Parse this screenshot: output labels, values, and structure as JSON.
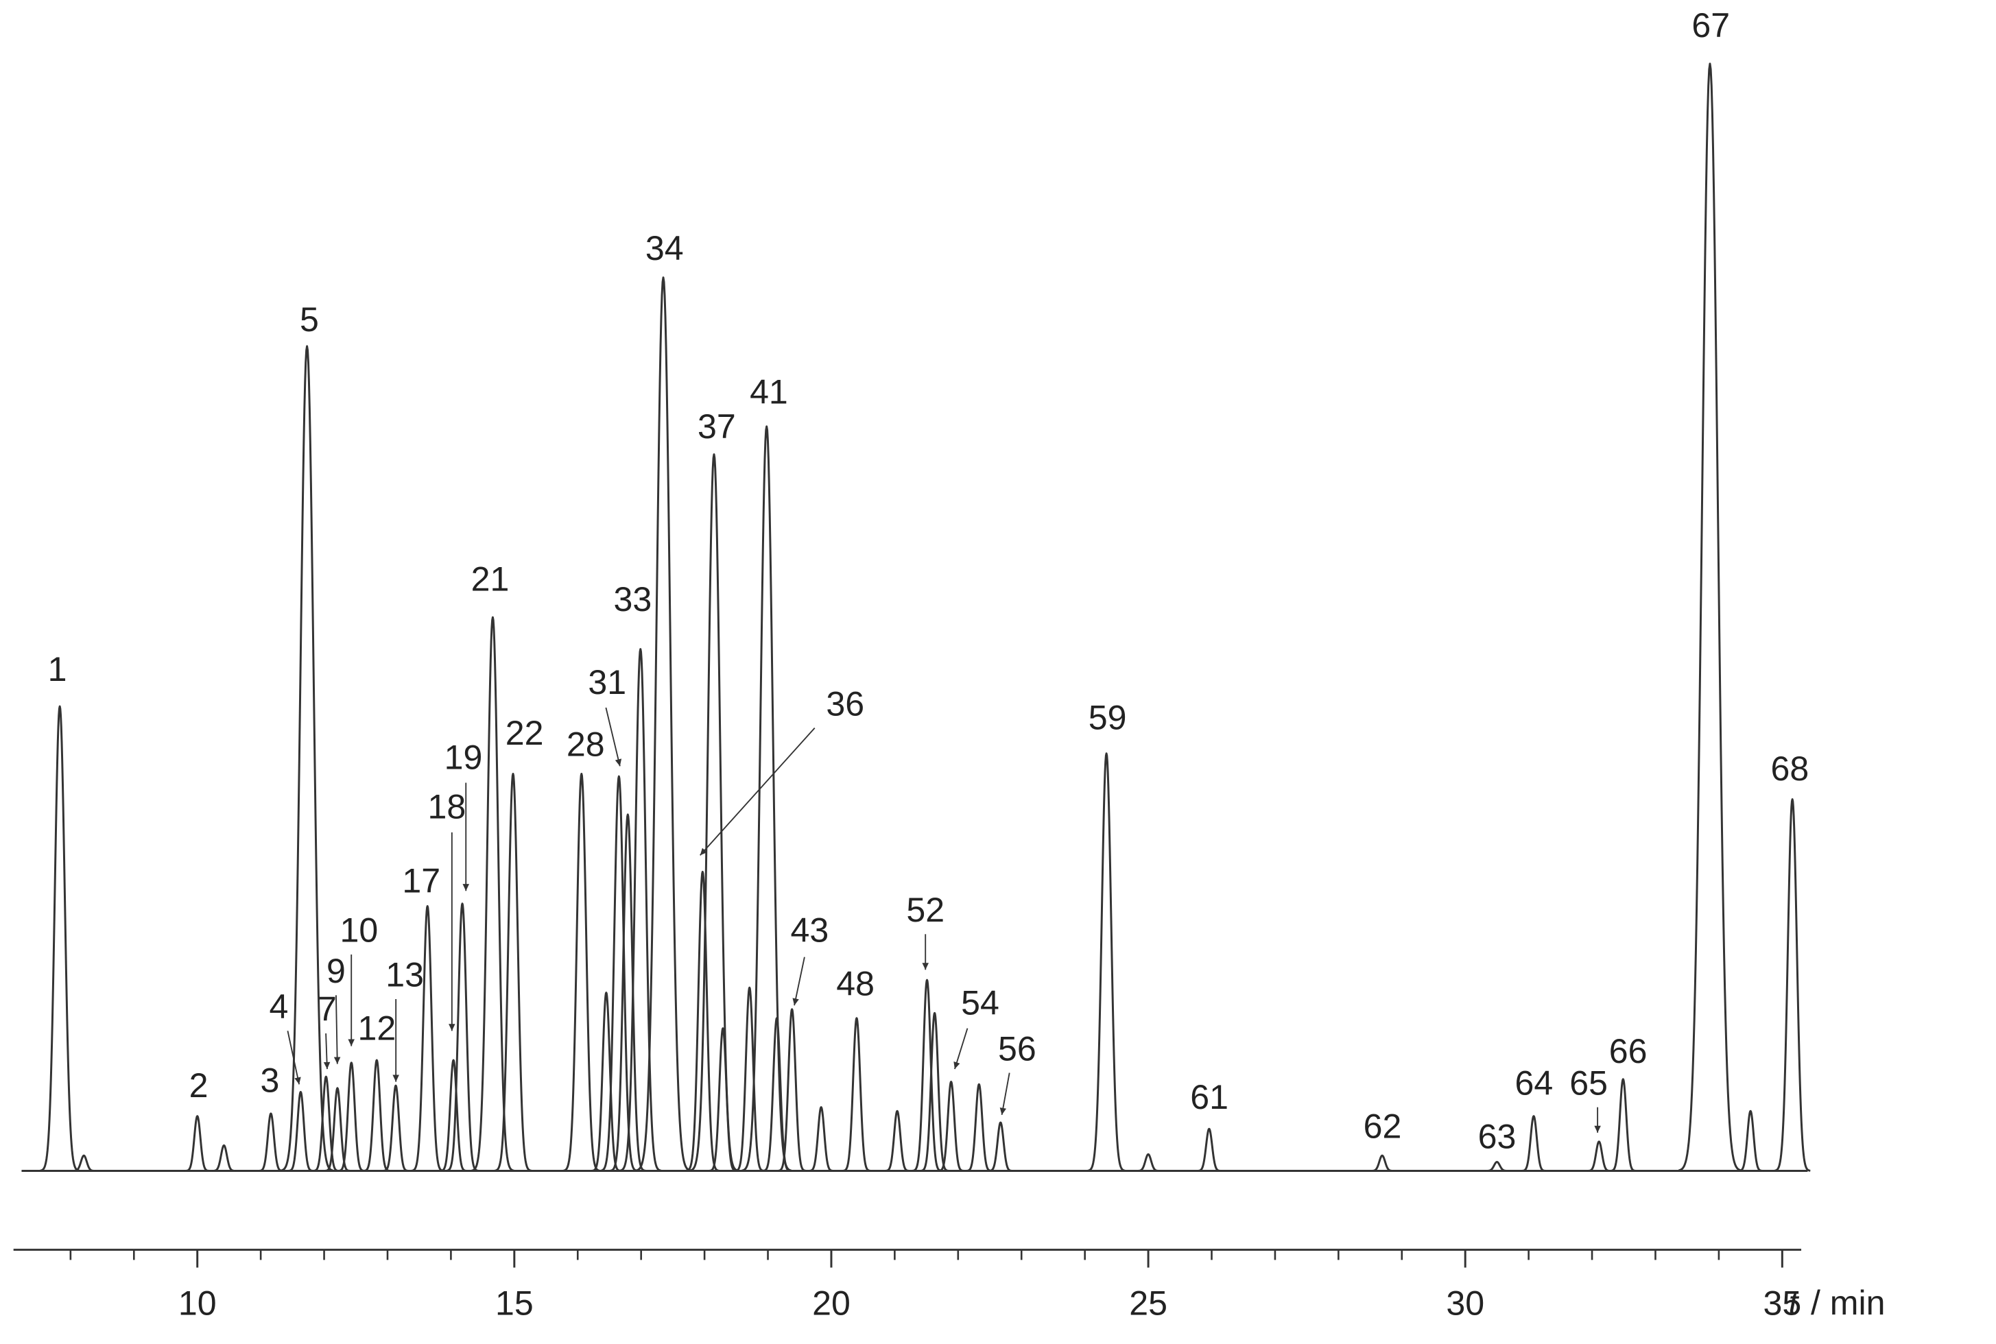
{
  "chart_data": {
    "type": "chromatogram",
    "x_label": {
      "symbol": "t",
      "unit": "/ min"
    },
    "xlim": [
      7.1,
      35.3
    ],
    "xticks": [
      10,
      15,
      20,
      25,
      30,
      35
    ],
    "xminorticks": [
      8,
      9,
      11,
      12,
      13,
      14,
      16,
      17,
      18,
      19,
      21,
      22,
      23,
      24,
      26,
      27,
      28,
      29,
      31,
      32,
      33,
      34
    ],
    "ylim": [
      0,
      900
    ],
    "color": "#333333",
    "peaks": {
      "labels": [
        "1",
        null,
        "2",
        null,
        "3",
        "4",
        "5",
        "7",
        "9",
        "10",
        "12",
        "13",
        "17",
        "18",
        "19",
        "21",
        "22",
        "28",
        null,
        "31",
        null,
        "33",
        "34",
        "36",
        "37",
        null,
        null,
        "41",
        null,
        "43",
        null,
        "48",
        null,
        "52",
        null,
        "54",
        null,
        "56",
        "59",
        null,
        "61",
        "62",
        "63",
        "64",
        "65",
        "66",
        "67",
        null,
        "68"
      ],
      "x": [
        7.83,
        8.21,
        10.0,
        10.42,
        11.16,
        11.63,
        11.73,
        12.03,
        12.21,
        12.43,
        12.83,
        13.13,
        13.63,
        14.04,
        14.18,
        14.66,
        14.98,
        16.06,
        16.45,
        16.65,
        16.79,
        16.99,
        17.35,
        17.97,
        18.15,
        18.29,
        18.71,
        18.98,
        19.14,
        19.38,
        19.84,
        20.4,
        21.04,
        21.51,
        21.63,
        21.89,
        22.33,
        22.67,
        24.34,
        25.0,
        25.96,
        28.69,
        30.5,
        31.08,
        32.11,
        32.49,
        33.86,
        34.5,
        35.16
      ],
      "values": [
        365,
        12,
        43,
        20,
        45,
        62,
        648,
        74,
        65,
        85,
        87,
        67,
        208,
        87,
        210,
        435,
        312,
        312,
        140,
        310,
        280,
        410,
        702,
        235,
        563,
        112,
        144,
        585,
        120,
        127,
        50,
        120,
        47,
        150,
        124,
        70,
        68,
        38,
        328,
        13,
        33,
        12,
        7,
        43,
        23,
        72,
        870,
        47,
        292
      ]
    }
  }
}
